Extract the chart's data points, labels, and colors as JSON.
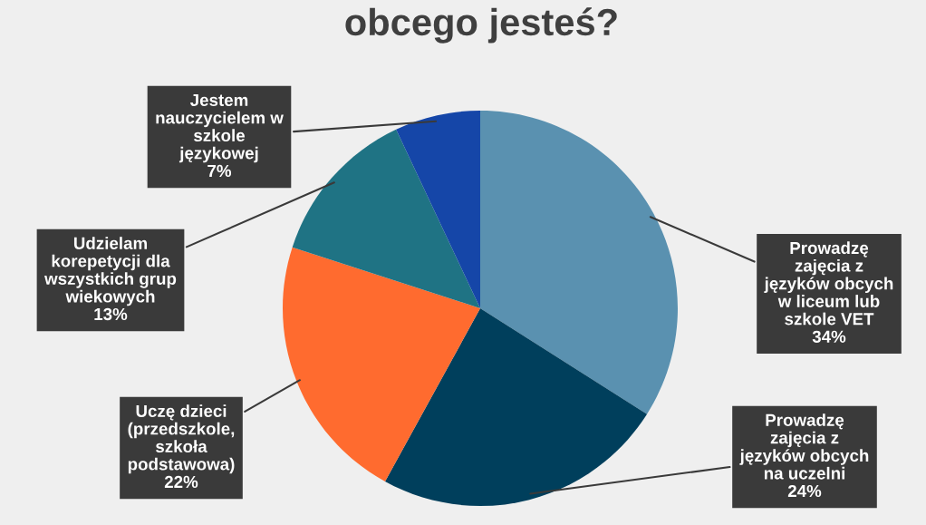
{
  "chart_data": {
    "type": "pie",
    "title": "obcego jesteś?",
    "categories": [
      "Prowadzę\nzajęcia z\njęzyków obcych\nw liceum lub\nszkole VET",
      "Prowadzę\nzajęcia z\njęzyków obcych\nna uczelni",
      "Uczę dzieci\n(przedszkole,\nszkoła\npodstawowa)",
      "Udzielam\nkorepetycji dla\nwszystkich grup\nwiekowych",
      "Jestem\nnauczycielem w\nszkole\njęzykowej"
    ],
    "values": [
      34,
      24,
      22,
      13,
      7
    ],
    "value_labels": [
      "34%",
      "24%",
      "22%",
      "13%",
      "7%"
    ],
    "colors": [
      "#5a91b0",
      "#003f5c",
      "#ff6b2f",
      "#1f7384",
      "#1546a8"
    ],
    "legend": false
  }
}
